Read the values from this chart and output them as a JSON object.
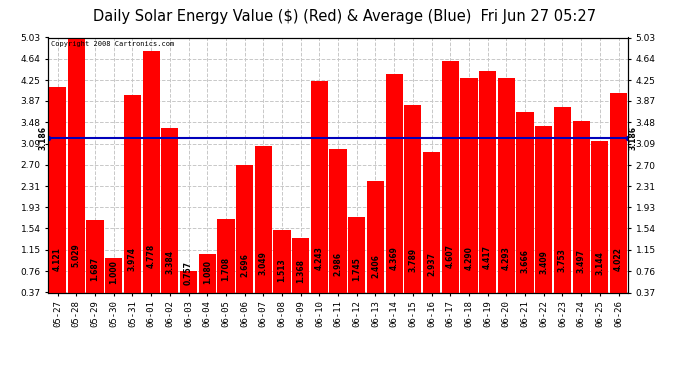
{
  "title": "Daily Solar Energy Value ($) (Red) & Average (Blue)  Fri Jun 27 05:27",
  "copyright": "Copyright 2008 Cartronics.com",
  "categories": [
    "05-27",
    "05-28",
    "05-29",
    "05-30",
    "05-31",
    "06-01",
    "06-02",
    "06-03",
    "06-04",
    "06-05",
    "06-06",
    "06-07",
    "06-08",
    "06-09",
    "06-10",
    "06-11",
    "06-12",
    "06-13",
    "06-14",
    "06-15",
    "06-16",
    "06-17",
    "06-18",
    "06-19",
    "06-20",
    "06-21",
    "06-22",
    "06-23",
    "06-24",
    "06-25",
    "06-26"
  ],
  "values": [
    4.121,
    5.029,
    1.687,
    1.0,
    3.974,
    4.778,
    3.384,
    0.757,
    1.08,
    1.708,
    2.696,
    3.049,
    1.513,
    1.368,
    4.243,
    2.986,
    1.745,
    2.406,
    4.369,
    3.789,
    2.937,
    4.607,
    4.29,
    4.417,
    4.293,
    3.666,
    3.409,
    3.753,
    3.497,
    3.144,
    4.022
  ],
  "average": 3.186,
  "bar_color": "#ff0000",
  "avg_line_color": "#0000bb",
  "background_color": "#ffffff",
  "plot_bg_color": "#ffffff",
  "grid_color": "#c8c8c8",
  "ylim": [
    0.37,
    5.03
  ],
  "yticks": [
    0.37,
    0.76,
    1.15,
    1.54,
    1.93,
    2.31,
    2.7,
    3.09,
    3.48,
    3.87,
    4.25,
    4.64,
    5.03
  ],
  "title_fontsize": 10.5,
  "tick_fontsize": 6.5,
  "label_fontsize": 5.5,
  "avg_label": "3.186",
  "bar_width": 0.92
}
